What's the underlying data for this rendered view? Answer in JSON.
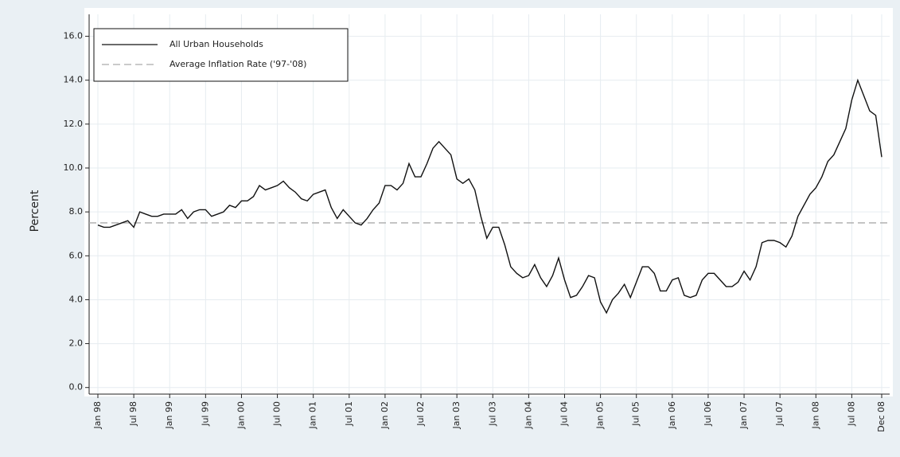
{
  "chart_data": {
    "type": "line",
    "y_label": "Percent",
    "categories": [
      "Jan 98",
      null,
      null,
      null,
      null,
      null,
      "Jul 98",
      null,
      null,
      null,
      null,
      null,
      "Jan 99",
      null,
      null,
      null,
      null,
      null,
      "Jul 99",
      null,
      null,
      null,
      null,
      null,
      "Jan 00",
      null,
      null,
      null,
      null,
      null,
      "Jul 00",
      null,
      null,
      null,
      null,
      null,
      "Jan 01",
      null,
      null,
      null,
      null,
      null,
      "Jul 01",
      null,
      null,
      null,
      null,
      null,
      "Jan 02",
      null,
      null,
      null,
      null,
      null,
      "Jul 02",
      null,
      null,
      null,
      null,
      null,
      "Jan 03",
      null,
      null,
      null,
      null,
      null,
      "Jul 03",
      null,
      null,
      null,
      null,
      null,
      "Jan 04",
      null,
      null,
      null,
      null,
      null,
      "Jul 04",
      null,
      null,
      null,
      null,
      null,
      "Jan 05",
      null,
      null,
      null,
      null,
      null,
      "Jul 05",
      null,
      null,
      null,
      null,
      null,
      "Jan 06",
      null,
      null,
      null,
      null,
      null,
      "Jul 06",
      null,
      null,
      null,
      null,
      null,
      "Jan 07",
      null,
      null,
      null,
      null,
      null,
      "Jul 07",
      null,
      null,
      null,
      null,
      null,
      "Jan 08",
      null,
      null,
      null,
      null,
      null,
      "Jul 08",
      null,
      null,
      null,
      null,
      "Dec 08"
    ],
    "series": [
      {
        "name": "All Urban Households",
        "color": "#111111",
        "values": [
          7.4,
          7.3,
          7.3,
          7.4,
          7.5,
          7.6,
          7.3,
          8.0,
          7.9,
          7.8,
          7.8,
          7.9,
          7.9,
          7.9,
          8.1,
          7.7,
          8.0,
          8.1,
          8.1,
          7.8,
          7.9,
          8.0,
          8.3,
          8.2,
          8.5,
          8.5,
          8.7,
          9.2,
          9.0,
          9.1,
          9.2,
          9.4,
          9.1,
          8.9,
          8.6,
          8.5,
          8.8,
          8.9,
          9.0,
          8.2,
          7.7,
          8.1,
          7.8,
          7.5,
          7.4,
          7.7,
          8.1,
          8.4,
          9.2,
          9.2,
          9.0,
          9.3,
          10.2,
          9.6,
          9.6,
          10.2,
          10.9,
          11.2,
          10.9,
          10.6,
          9.5,
          9.3,
          9.5,
          9.0,
          7.8,
          6.8,
          7.3,
          7.3,
          6.5,
          5.5,
          5.2,
          5.0,
          5.1,
          5.6,
          5.0,
          4.6,
          5.1,
          5.9,
          4.9,
          4.1,
          4.2,
          4.6,
          5.1,
          5.0,
          3.9,
          3.4,
          4.0,
          4.3,
          4.7,
          4.1,
          4.8,
          5.5,
          5.5,
          5.2,
          4.4,
          4.4,
          4.9,
          5.0,
          4.2,
          4.1,
          4.2,
          4.9,
          5.2,
          5.2,
          4.9,
          4.6,
          4.6,
          4.8,
          5.3,
          4.9,
          5.5,
          6.6,
          6.7,
          6.7,
          6.6,
          6.4,
          6.9,
          7.8,
          8.3,
          8.8,
          9.1,
          9.6,
          10.3,
          10.6,
          11.2,
          11.8,
          13.1,
          14.0,
          13.3,
          12.6,
          12.4,
          10.5
        ]
      }
    ],
    "reference_lines": [
      {
        "name": "Average Inflation Rate ('97-'08)",
        "value": 7.5,
        "color": "#aaaaaa",
        "dashed": true
      }
    ],
    "ylim": [
      -0.3,
      17
    ],
    "yticks": [
      {
        "value": 0,
        "label": "0.0"
      },
      {
        "value": 2,
        "label": "2.0"
      },
      {
        "value": 4,
        "label": "4.0"
      },
      {
        "value": 6,
        "label": "6.0"
      },
      {
        "value": 8,
        "label": "8.0"
      },
      {
        "value": 10,
        "label": "10.0"
      },
      {
        "value": 12,
        "label": "12.0"
      },
      {
        "value": 14,
        "label": "14.0"
      },
      {
        "value": 16,
        "label": "16.0"
      }
    ],
    "grid": true,
    "legend": "top-left"
  }
}
